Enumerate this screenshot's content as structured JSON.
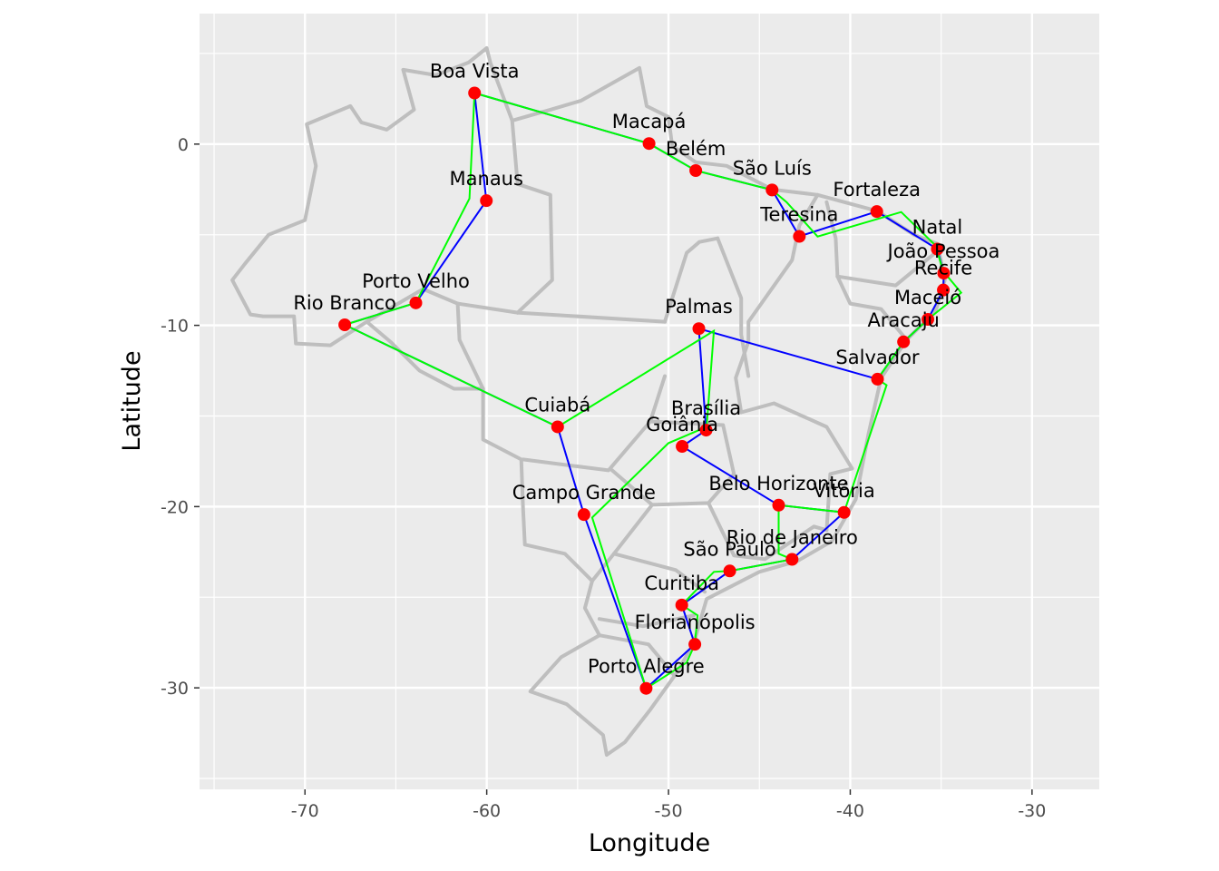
{
  "chart_data": {
    "type": "scatter",
    "title": "",
    "xlabel": "Longitude",
    "ylabel": "Latitude",
    "xlim": [
      -75.8,
      -26.3
    ],
    "ylim": [
      -35.6,
      7.2
    ],
    "x_ticks": [
      {
        "value": -70,
        "label": "-70"
      },
      {
        "value": -60,
        "label": "-60"
      },
      {
        "value": -50,
        "label": "-50"
      },
      {
        "value": -40,
        "label": "-40"
      },
      {
        "value": -30,
        "label": "-30"
      }
    ],
    "y_ticks": [
      {
        "value": 0,
        "label": "0"
      },
      {
        "value": -10,
        "label": "-10"
      },
      {
        "value": -20,
        "label": "-20"
      },
      {
        "value": -30,
        "label": "-30"
      }
    ],
    "grid": true,
    "background": "#ebebeb",
    "colors": {
      "points": "#ff0000",
      "route_blue": "#0000ff",
      "route_green": "#00ff00",
      "borders": "#bebebe",
      "grid": "#ffffff"
    },
    "cities": [
      {
        "name": "Boa Vista",
        "lon": -60.67,
        "lat": 2.82
      },
      {
        "name": "Macapá",
        "lon": -51.07,
        "lat": 0.03
      },
      {
        "name": "Belém",
        "lon": -48.5,
        "lat": -1.46
      },
      {
        "name": "São Luís",
        "lon": -44.3,
        "lat": -2.53
      },
      {
        "name": "Fortaleza",
        "lon": -38.54,
        "lat": -3.72
      },
      {
        "name": "Teresina",
        "lon": -42.8,
        "lat": -5.09
      },
      {
        "name": "Natal",
        "lon": -35.21,
        "lat": -5.79
      },
      {
        "name": "João Pessoa",
        "lon": -34.86,
        "lat": -7.12
      },
      {
        "name": "Recife",
        "lon": -34.88,
        "lat": -8.05
      },
      {
        "name": "Maceió",
        "lon": -35.73,
        "lat": -9.67
      },
      {
        "name": "Aracaju",
        "lon": -37.07,
        "lat": -10.91
      },
      {
        "name": "Salvador",
        "lon": -38.5,
        "lat": -12.97
      },
      {
        "name": "Palmas",
        "lon": -48.33,
        "lat": -10.18
      },
      {
        "name": "Brasília",
        "lon": -47.93,
        "lat": -15.78
      },
      {
        "name": "Goiânia",
        "lon": -49.25,
        "lat": -16.68
      },
      {
        "name": "Cuiabá",
        "lon": -56.1,
        "lat": -15.6
      },
      {
        "name": "Campo Grande",
        "lon": -54.65,
        "lat": -20.44
      },
      {
        "name": "Belo Horizonte",
        "lon": -43.94,
        "lat": -19.92
      },
      {
        "name": "Vitória",
        "lon": -40.34,
        "lat": -20.32
      },
      {
        "name": "Rio de Janeiro",
        "lon": -43.2,
        "lat": -22.91
      },
      {
        "name": "São Paulo",
        "lon": -46.63,
        "lat": -23.55
      },
      {
        "name": "Curitiba",
        "lon": -49.27,
        "lat": -25.43
      },
      {
        "name": "Florianópolis",
        "lon": -48.55,
        "lat": -27.6
      },
      {
        "name": "Porto Alegre",
        "lon": -51.23,
        "lat": -30.03
      },
      {
        "name": "Manaus",
        "lon": -60.02,
        "lat": -3.12
      },
      {
        "name": "Porto Velho",
        "lon": -63.9,
        "lat": -8.76
      },
      {
        "name": "Rio Branco",
        "lon": -67.81,
        "lat": -9.97
      }
    ],
    "routes": [
      {
        "color": "#0000ff",
        "path": [
          [
            -60.67,
            2.82
          ],
          [
            -51.07,
            0.03
          ],
          [
            -48.5,
            -1.46
          ],
          [
            -44.3,
            -2.53
          ],
          [
            -42.8,
            -5.09
          ],
          [
            -38.54,
            -3.72
          ],
          [
            -35.21,
            -5.79
          ],
          [
            -34.86,
            -7.12
          ],
          [
            -34.88,
            -8.05
          ],
          [
            -35.73,
            -9.67
          ],
          [
            -37.07,
            -10.91
          ],
          [
            -38.5,
            -12.97
          ],
          [
            -48.33,
            -10.18
          ],
          [
            -47.93,
            -15.78
          ],
          [
            -49.25,
            -16.68
          ],
          [
            -43.94,
            -19.92
          ],
          [
            -40.34,
            -20.32
          ],
          [
            -43.2,
            -22.91
          ],
          [
            -46.63,
            -23.55
          ],
          [
            -49.27,
            -25.43
          ],
          [
            -48.55,
            -27.6
          ],
          [
            -51.23,
            -30.03
          ],
          [
            -54.65,
            -20.44
          ],
          [
            -56.1,
            -15.6
          ],
          [
            -67.81,
            -9.97
          ],
          [
            -63.9,
            -8.76
          ],
          [
            -60.02,
            -3.12
          ],
          [
            -60.67,
            2.82
          ]
        ]
      },
      {
        "color": "#00ff00",
        "path": [
          [
            -60.67,
            2.82
          ],
          [
            -51.07,
            0.03
          ],
          [
            -48.5,
            -1.46
          ],
          [
            -44.3,
            -2.53
          ],
          [
            -43.5,
            -3.2
          ],
          [
            -41.8,
            -5.1
          ],
          [
            -37.2,
            -3.75
          ],
          [
            -35.3,
            -5.6
          ],
          [
            -34.9,
            -7.0
          ],
          [
            -33.9,
            -8.2
          ],
          [
            -35.73,
            -9.67
          ],
          [
            -37.07,
            -10.91
          ],
          [
            -38.5,
            -12.97
          ],
          [
            -38.0,
            -13.3
          ],
          [
            -40.34,
            -20.32
          ],
          [
            -43.94,
            -19.92
          ],
          [
            -43.94,
            -22.6
          ],
          [
            -43.2,
            -22.91
          ],
          [
            -46.63,
            -23.55
          ],
          [
            -47.5,
            -23.6
          ],
          [
            -49.27,
            -25.43
          ],
          [
            -48.4,
            -26.0
          ],
          [
            -48.55,
            -27.6
          ],
          [
            -49.0,
            -28.6
          ],
          [
            -51.23,
            -30.03
          ],
          [
            -54.2,
            -20.6
          ],
          [
            -50.0,
            -16.5
          ],
          [
            -47.9,
            -15.6
          ],
          [
            -47.5,
            -10.3
          ],
          [
            -56.1,
            -15.6
          ],
          [
            -67.81,
            -9.97
          ],
          [
            -63.9,
            -8.76
          ],
          [
            -60.95,
            -3.0
          ],
          [
            -60.67,
            2.82
          ]
        ]
      }
    ],
    "borders": [
      {
        "name": "outline",
        "path": [
          [
            -60.0,
            5.3
          ],
          [
            -59.8,
            4.5
          ],
          [
            -58.6,
            1.3
          ],
          [
            -56.5,
            1.9
          ],
          [
            -54.8,
            2.4
          ],
          [
            -51.6,
            4.2
          ],
          [
            -51.2,
            2.1
          ],
          [
            -50.0,
            1.5
          ],
          [
            -49.8,
            -0.1
          ],
          [
            -48.5,
            -1.0
          ],
          [
            -46.8,
            -1.2
          ],
          [
            -44.3,
            -2.5
          ],
          [
            -41.8,
            -2.8
          ],
          [
            -38.5,
            -3.7
          ],
          [
            -36.5,
            -5.0
          ],
          [
            -35.2,
            -5.5
          ],
          [
            -34.8,
            -7.5
          ],
          [
            -35.3,
            -9.2
          ],
          [
            -36.9,
            -10.8
          ],
          [
            -38.3,
            -12.9
          ],
          [
            -39.0,
            -16.0
          ],
          [
            -39.7,
            -19.6
          ],
          [
            -41.0,
            -21.9
          ],
          [
            -42.9,
            -23.0
          ],
          [
            -45.0,
            -23.6
          ],
          [
            -47.9,
            -25.1
          ],
          [
            -48.6,
            -27.5
          ],
          [
            -49.5,
            -29.1
          ],
          [
            -51.0,
            -31.2
          ],
          [
            -52.4,
            -33.0
          ],
          [
            -53.4,
            -33.7
          ],
          [
            -53.6,
            -32.6
          ],
          [
            -55.6,
            -30.9
          ],
          [
            -57.6,
            -30.2
          ],
          [
            -55.9,
            -28.3
          ],
          [
            -53.8,
            -27.1
          ],
          [
            -54.6,
            -25.6
          ],
          [
            -54.2,
            -24.1
          ],
          [
            -55.7,
            -22.6
          ],
          [
            -57.9,
            -22.1
          ],
          [
            -58.0,
            -20.1
          ],
          [
            -58.1,
            -17.4
          ],
          [
            -60.2,
            -16.3
          ],
          [
            -60.2,
            -13.5
          ],
          [
            -61.8,
            -13.5
          ],
          [
            -63.7,
            -12.5
          ],
          [
            -65.3,
            -10.9
          ],
          [
            -66.6,
            -9.8
          ],
          [
            -68.6,
            -11.1
          ],
          [
            -70.5,
            -11.0
          ],
          [
            -70.6,
            -9.5
          ],
          [
            -72.3,
            -9.5
          ],
          [
            -73.0,
            -9.4
          ],
          [
            -74.0,
            -7.5
          ],
          [
            -73.3,
            -6.6
          ],
          [
            -72.0,
            -5.0
          ],
          [
            -70.0,
            -4.2
          ],
          [
            -69.4,
            -1.2
          ],
          [
            -69.9,
            1.1
          ],
          [
            -67.5,
            2.1
          ],
          [
            -66.9,
            1.2
          ],
          [
            -65.5,
            0.8
          ],
          [
            -64.0,
            1.9
          ],
          [
            -64.6,
            4.1
          ],
          [
            -62.8,
            3.8
          ],
          [
            -61.0,
            4.5
          ],
          [
            -60.0,
            5.3
          ]
        ]
      },
      {
        "name": "am-pa",
        "path": [
          [
            -58.6,
            1.3
          ],
          [
            -58.3,
            -2.2
          ],
          [
            -56.5,
            -2.8
          ],
          [
            -56.4,
            -7.5
          ],
          [
            -58.3,
            -9.3
          ]
        ]
      },
      {
        "name": "am-mt",
        "path": [
          [
            -58.3,
            -9.3
          ],
          [
            -61.6,
            -8.8
          ],
          [
            -63.5,
            -8.0
          ],
          [
            -66.6,
            -9.8
          ]
        ]
      },
      {
        "name": "ro-mt",
        "path": [
          [
            -61.6,
            -8.8
          ],
          [
            -61.5,
            -10.8
          ],
          [
            -60.2,
            -13.5
          ]
        ]
      },
      {
        "name": "pa-mt",
        "path": [
          [
            -58.3,
            -9.3
          ],
          [
            -50.2,
            -9.8
          ]
        ]
      },
      {
        "name": "pa-to",
        "path": [
          [
            -50.2,
            -9.8
          ],
          [
            -49.0,
            -6.0
          ],
          [
            -48.3,
            -5.4
          ],
          [
            -47.3,
            -5.2
          ]
        ]
      },
      {
        "name": "to-ma",
        "path": [
          [
            -47.3,
            -5.2
          ],
          [
            -46.0,
            -8.5
          ],
          [
            -46.0,
            -10.5
          ],
          [
            -45.6,
            -12.8
          ]
        ]
      },
      {
        "name": "ma-pi",
        "path": [
          [
            -41.8,
            -2.8
          ],
          [
            -42.8,
            -4.5
          ],
          [
            -43.2,
            -6.4
          ],
          [
            -45.6,
            -9.8
          ],
          [
            -45.6,
            -10.9
          ]
        ]
      },
      {
        "name": "pi-ce",
        "path": [
          [
            -41.3,
            -3.2
          ],
          [
            -40.8,
            -5.2
          ],
          [
            -40.7,
            -7.3
          ]
        ]
      },
      {
        "name": "ne-states",
        "path": [
          [
            -40.7,
            -7.3
          ],
          [
            -37.5,
            -7.8
          ],
          [
            -35.2,
            -5.9
          ]
        ]
      },
      {
        "name": "pe-ba",
        "path": [
          [
            -40.7,
            -7.3
          ],
          [
            -40.0,
            -8.8
          ],
          [
            -38.3,
            -9.1
          ],
          [
            -36.9,
            -10.8
          ]
        ]
      },
      {
        "name": "ba-west",
        "path": [
          [
            -45.6,
            -10.9
          ],
          [
            -46.3,
            -12.9
          ],
          [
            -46.0,
            -14.8
          ],
          [
            -44.2,
            -14.3
          ],
          [
            -41.3,
            -15.6
          ],
          [
            -39.9,
            -17.9
          ]
        ]
      },
      {
        "name": "mt-ms",
        "path": [
          [
            -58.0,
            -17.4
          ],
          [
            -53.3,
            -18.0
          ],
          [
            -51.0,
            -15.3
          ],
          [
            -50.2,
            -12.8
          ]
        ]
      },
      {
        "name": "go-mg",
        "path": [
          [
            -51.0,
            -15.3
          ],
          [
            -47.0,
            -15.5
          ],
          [
            -46.4,
            -18.2
          ],
          [
            -47.8,
            -19.8
          ],
          [
            -50.9,
            -19.9
          ],
          [
            -53.1,
            -18.0
          ]
        ]
      },
      {
        "name": "ms-sp",
        "path": [
          [
            -50.9,
            -19.9
          ],
          [
            -53.0,
            -22.6
          ],
          [
            -54.2,
            -24.1
          ]
        ]
      },
      {
        "name": "mg-sp-rj",
        "path": [
          [
            -47.8,
            -19.8
          ],
          [
            -46.4,
            -22.7
          ],
          [
            -44.7,
            -22.9
          ],
          [
            -42.0,
            -21.1
          ],
          [
            -41.3,
            -21.3
          ]
        ]
      },
      {
        "name": "mg-es",
        "path": [
          [
            -41.3,
            -21.3
          ],
          [
            -41.1,
            -18.2
          ],
          [
            -39.9,
            -17.9
          ]
        ]
      },
      {
        "name": "sp-pr",
        "path": [
          [
            -53.0,
            -22.6
          ],
          [
            -49.6,
            -23.5
          ],
          [
            -48.0,
            -24.7
          ]
        ]
      },
      {
        "name": "pr-sc",
        "path": [
          [
            -53.8,
            -26.2
          ],
          [
            -51.4,
            -26.6
          ],
          [
            -48.6,
            -26.0
          ]
        ]
      },
      {
        "name": "sc-rs",
        "path": [
          [
            -53.8,
            -27.1
          ],
          [
            -51.1,
            -27.6
          ],
          [
            -49.7,
            -29.3
          ]
        ]
      }
    ]
  }
}
